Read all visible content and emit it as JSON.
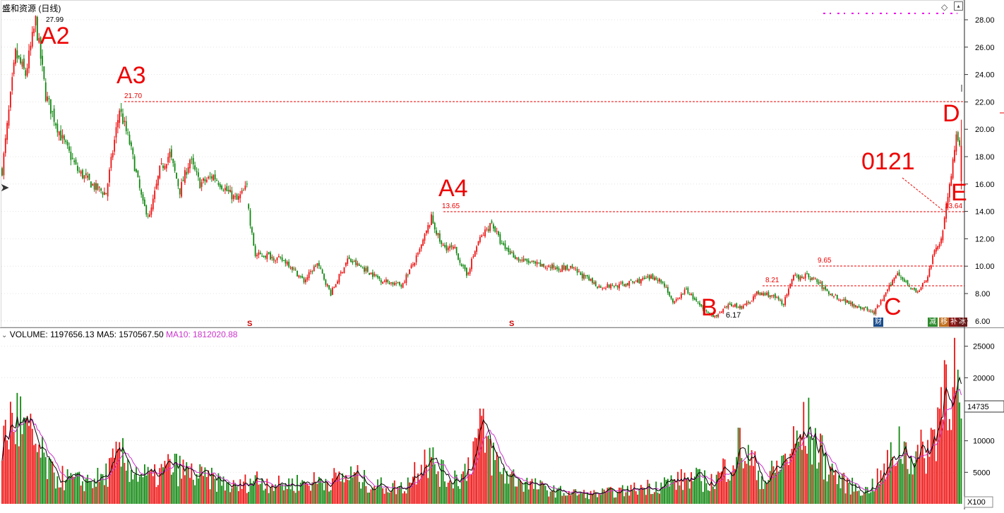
{
  "header": {
    "title": "盛和资源 (日线)",
    "volume_label": "VOLUME: 1197656.13",
    "ma5_label": "MA5: 1570567.50",
    "ma10_label": "MA10: 1812020.88"
  },
  "price_axis": {
    "ticks": [
      "6.00",
      "8.00",
      "10.00",
      "12.00",
      "14.00",
      "16.00",
      "18.00",
      "20.00",
      "22.00",
      "24.00",
      "26.00",
      "28.00"
    ],
    "range": [
      5.4,
      28.6
    ]
  },
  "volume_axis": {
    "ticks": [
      "5000",
      "10000",
      "15000",
      "20000",
      "25000"
    ],
    "current": "14735",
    "unit": "X100",
    "range": [
      0,
      27000
    ]
  },
  "annotations": {
    "a2": "A2",
    "a3": "A3",
    "a4": "A4",
    "b": "B",
    "c": "C",
    "d": "D",
    "e": "E",
    "label_0121": "0121"
  },
  "price_labels": {
    "high_a2": "27.99",
    "high_a3": "21.70",
    "high_a4": "13.65",
    "level_e": "13.64",
    "low_b": "6.17",
    "level_821": "8.21",
    "level_965": "9.65"
  },
  "markers": {
    "s1": "S",
    "s2": "S",
    "cai": "财",
    "badge_1": "减",
    "badge_2": "移",
    "badge_3": "补",
    "badge_4": "冰"
  },
  "colors": {
    "up": "#ee1111",
    "down": "#118811",
    "ma5": "#000000",
    "ma10": "#cc33cc",
    "annotation": "#ee0000"
  },
  "chart_data": [
    {
      "type": "candlestick",
      "title": "盛和资源 (日线)",
      "ylim": [
        5.4,
        28.6
      ],
      "waypoints_close": [
        [
          0,
          17.0
        ],
        [
          8,
          25.5
        ],
        [
          14,
          24.0
        ],
        [
          20,
          27.9
        ],
        [
          26,
          22.5
        ],
        [
          35,
          19.5
        ],
        [
          45,
          17.0
        ],
        [
          55,
          15.8
        ],
        [
          62,
          15.3
        ],
        [
          70,
          21.5
        ],
        [
          76,
          19.0
        ],
        [
          84,
          14.5
        ],
        [
          88,
          13.6
        ],
        [
          94,
          17.0
        ],
        [
          100,
          18.2
        ],
        [
          106,
          15.5
        ],
        [
          112,
          17.8
        ],
        [
          118,
          16.0
        ],
        [
          126,
          16.6
        ],
        [
          134,
          15.5
        ],
        [
          140,
          14.8
        ],
        [
          146,
          15.8
        ],
        [
          148,
          13.0
        ],
        [
          151,
          10.8
        ],
        [
          158,
          10.8
        ],
        [
          170,
          10.3
        ],
        [
          180,
          8.9
        ],
        [
          188,
          10.2
        ],
        [
          196,
          8.0
        ],
        [
          206,
          10.5
        ],
        [
          216,
          9.8
        ],
        [
          226,
          9.0
        ],
        [
          238,
          8.6
        ],
        [
          248,
          10.8
        ],
        [
          256,
          13.5
        ],
        [
          262,
          11.5
        ],
        [
          270,
          11.2
        ],
        [
          277,
          9.3
        ],
        [
          284,
          11.8
        ],
        [
          292,
          13.2
        ],
        [
          298,
          11.5
        ],
        [
          308,
          10.5
        ],
        [
          322,
          10.0
        ],
        [
          340,
          9.8
        ],
        [
          356,
          8.5
        ],
        [
          368,
          8.6
        ],
        [
          382,
          9.0
        ],
        [
          390,
          9.2
        ],
        [
          396,
          8.5
        ],
        [
          400,
          7.2
        ],
        [
          408,
          8.3
        ],
        [
          418,
          6.8
        ],
        [
          426,
          6.3
        ],
        [
          434,
          7.2
        ],
        [
          442,
          7.0
        ],
        [
          450,
          8.0
        ],
        [
          458,
          7.9
        ],
        [
          466,
          7.3
        ],
        [
          472,
          9.2
        ],
        [
          480,
          9.3
        ],
        [
          486,
          8.9
        ],
        [
          492,
          8.1
        ],
        [
          502,
          7.5
        ],
        [
          512,
          7.0
        ],
        [
          520,
          6.6
        ],
        [
          528,
          8.2
        ],
        [
          534,
          9.6
        ],
        [
          540,
          8.7
        ],
        [
          546,
          8.0
        ],
        [
          552,
          9.3
        ],
        [
          556,
          11.0
        ],
        [
          560,
          12.0
        ],
        [
          565,
          16.0
        ],
        [
          569,
          19.2
        ],
        [
          572,
          18.5
        ]
      ],
      "gap_after_index": 146,
      "last_bar": {
        "open": 16.2,
        "high": 20.7,
        "low": 15.6,
        "close": 18.8
      }
    },
    {
      "type": "bar",
      "title": "VOLUME",
      "ylim": [
        0,
        27000
      ],
      "series": [
        {
          "name": "VOLUME"
        },
        {
          "name": "MA5"
        },
        {
          "name": "MA10"
        }
      ],
      "waypoints": [
        [
          0,
          10000
        ],
        [
          8,
          14000
        ],
        [
          14,
          11000
        ],
        [
          20,
          9000
        ],
        [
          30,
          4500
        ],
        [
          45,
          3500
        ],
        [
          60,
          4000
        ],
        [
          70,
          7500
        ],
        [
          80,
          5000
        ],
        [
          90,
          4000
        ],
        [
          100,
          6000
        ],
        [
          115,
          4500
        ],
        [
          130,
          3500
        ],
        [
          140,
          2500
        ],
        [
          150,
          4000
        ],
        [
          165,
          3000
        ],
        [
          185,
          3500
        ],
        [
          200,
          4000
        ],
        [
          210,
          4500
        ],
        [
          220,
          3000
        ],
        [
          240,
          2500
        ],
        [
          252,
          8000
        ],
        [
          265,
          4000
        ],
        [
          275,
          4500
        ],
        [
          285,
          11500
        ],
        [
          298,
          5000
        ],
        [
          315,
          3000
        ],
        [
          330,
          2000
        ],
        [
          350,
          1500
        ],
        [
          370,
          2000
        ],
        [
          390,
          3000
        ],
        [
          410,
          4000
        ],
        [
          425,
          3500
        ],
        [
          440,
          9000
        ],
        [
          455,
          3500
        ],
        [
          468,
          7500
        ],
        [
          480,
          12000
        ],
        [
          490,
          7000
        ],
        [
          500,
          3500
        ],
        [
          515,
          2000
        ],
        [
          525,
          4500
        ],
        [
          535,
          9500
        ],
        [
          545,
          7000
        ],
        [
          555,
          10000
        ],
        [
          562,
          20000
        ],
        [
          566,
          22000
        ],
        [
          569,
          18500
        ],
        [
          572,
          11977
        ]
      ]
    }
  ]
}
